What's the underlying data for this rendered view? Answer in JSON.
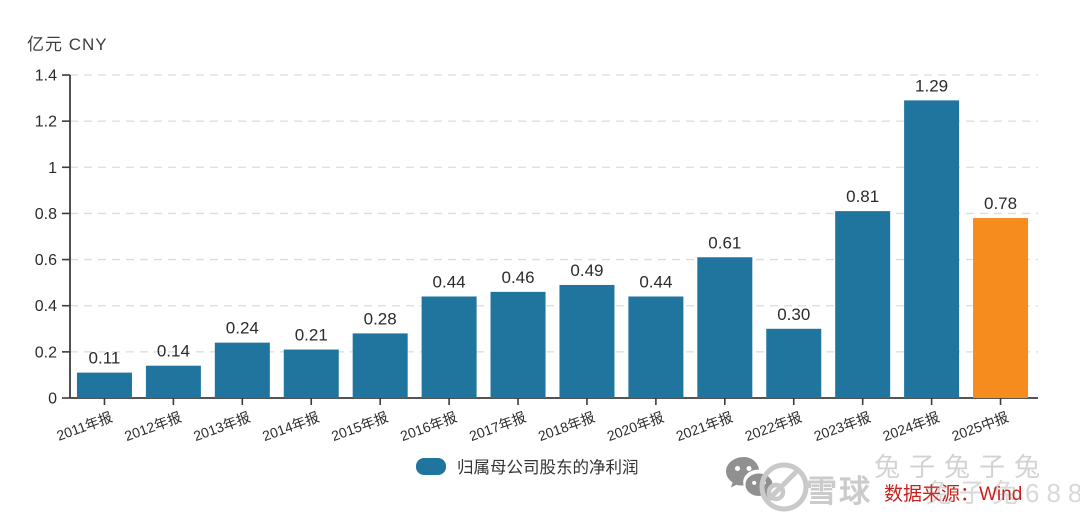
{
  "legend": {
    "label": "归属母公司股东的净利润",
    "chip_color": "#20759E"
  },
  "footer": {
    "xueqiu_logo_text": "雪球",
    "watermark_line1": "兔子兔子兔",
    "watermark_line2": "兔子兔688",
    "source_text": "数据来源：Wind",
    "source_color": "#C8201D"
  },
  "chart_data": {
    "type": "bar",
    "title": "",
    "unit": "亿元 CNY",
    "categories": [
      "2011年报",
      "2012年报",
      "2013年报",
      "2014年报",
      "2015年报",
      "2016年报",
      "2017年报",
      "2018年报",
      "2020年报",
      "2021年报",
      "2022年报",
      "2023年报",
      "2024年报",
      "2025中报"
    ],
    "values": [
      0.11,
      0.14,
      0.24,
      0.21,
      0.28,
      0.44,
      0.46,
      0.49,
      0.44,
      0.61,
      0.3,
      0.81,
      1.29,
      0.78
    ],
    "value_labels": [
      "0.11",
      "0.14",
      "0.24",
      "0.21",
      "0.28",
      "0.44",
      "0.46",
      "0.49",
      "0.44",
      "0.61",
      "0.30",
      "0.81",
      "1.29",
      "0.78"
    ],
    "series_name": "归属母公司股东的净利润",
    "ylabel": "亿元 CNY",
    "xlabel": "",
    "ylim": [
      0,
      1.4
    ],
    "y_ticks": [
      "0",
      "0.2",
      "0.4",
      "0.6",
      "0.8",
      "1",
      "1.2",
      "1.4"
    ],
    "grid": "dashed horizontal",
    "legend_position": "bottom",
    "bar_color": "#20759E",
    "highlight_index": 13,
    "highlight_color": "#F68C1E",
    "axis_color": "#3c3c3c",
    "grid_color": "#dcdcdc",
    "label_color": "#2b2b2b"
  }
}
